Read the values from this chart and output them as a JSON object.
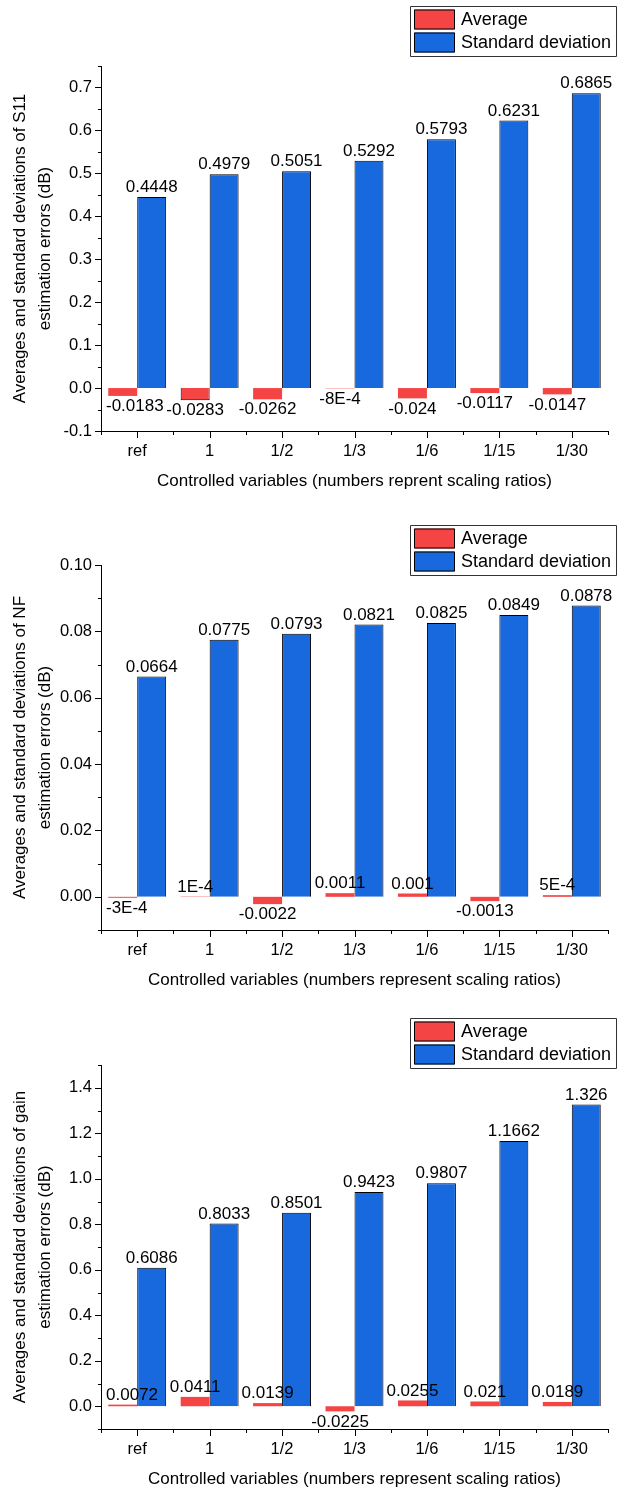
{
  "chart_data": [
    {
      "type": "bar",
      "categories": [
        "ref",
        "1",
        "1/2",
        "1/3",
        "1/6",
        "1/15",
        "1/30"
      ],
      "series": [
        {
          "name": "Average",
          "color": "#f54444",
          "values": [
            -0.0183,
            -0.0283,
            -0.0262,
            -0.0008,
            -0.024,
            -0.0117,
            -0.0147
          ],
          "value_labels": [
            "-0.0183",
            "-0.0283",
            "-0.0262",
            "-8E-4",
            "-0.024",
            "-0.0117",
            "-0.0147"
          ]
        },
        {
          "name": "Standard deviation",
          "color": "#1868de",
          "values": [
            0.4448,
            0.4979,
            0.5051,
            0.5292,
            0.5793,
            0.6231,
            0.6865
          ],
          "value_labels": [
            "0.4448",
            "0.4979",
            "0.5051",
            "0.5292",
            "0.5793",
            "0.6231",
            "0.6865"
          ]
        }
      ],
      "xlabel": "Controlled variables (numbers reprent scaling ratios)",
      "ylabel": "Averages and standard deviations of S11 estimation errors (dB)",
      "ylim": [
        -0.1,
        0.75
      ],
      "yticks": [
        -0.1,
        {
          "value": -0.05,
          "label": null
        },
        {
          "value": 0,
          "label": "0.0"
        },
        {
          "value": 0.05,
          "label": null
        },
        0.1,
        {
          "value": 0.15,
          "label": null
        },
        0.2,
        {
          "value": 0.25,
          "label": null
        },
        0.3,
        {
          "value": 0.35,
          "label": null
        },
        0.4,
        {
          "value": 0.45,
          "label": null
        },
        0.5,
        {
          "value": 0.55,
          "label": null
        },
        0.6,
        {
          "value": 0.65,
          "label": null
        },
        0.7,
        {
          "value": 0.75,
          "label": null
        }
      ],
      "legend": "top right"
    },
    {
      "type": "bar",
      "categories": [
        "ref",
        "1",
        "1/2",
        "1/3",
        "1/6",
        "1/15",
        "1/30"
      ],
      "series": [
        {
          "name": "Average",
          "color": "#f54444",
          "values": [
            -0.0003,
            0.0001,
            -0.0022,
            0.0011,
            0.001,
            -0.0013,
            0.0005
          ],
          "value_labels": [
            "-3E-4",
            "1E-4",
            "-0.0022",
            "0.0011",
            "0.001",
            "-0.0013",
            "5E-4"
          ]
        },
        {
          "name": "Standard deviation",
          "color": "#1868de",
          "values": [
            0.0664,
            0.0775,
            0.0793,
            0.0821,
            0.0825,
            0.0849,
            0.0878
          ],
          "value_labels": [
            "0.0664",
            "0.0775",
            "0.0793",
            "0.0821",
            "0.0825",
            "0.0849",
            "0.0878"
          ]
        }
      ],
      "xlabel": "Controlled variables (numbers represent scaling ratios)",
      "ylabel": "Averages and standard deviations of NF estimation errors (dB)",
      "ylim": [
        -0.01,
        0.1
      ],
      "yticks": [
        {
          "value": -0.01,
          "label": null
        },
        {
          "value": 0,
          "label": "0.00"
        },
        {
          "value": 0.01,
          "label": null
        },
        0.02,
        {
          "value": 0.03,
          "label": null
        },
        0.04,
        {
          "value": 0.05,
          "label": null
        },
        0.06,
        {
          "value": 0.07,
          "label": null
        },
        0.08,
        {
          "value": 0.09,
          "label": null
        },
        {
          "value": 0.1,
          "label": "0.10"
        }
      ],
      "legend": "top right"
    },
    {
      "type": "bar",
      "categories": [
        "ref",
        "1",
        "1/2",
        "1/3",
        "1/6",
        "1/15",
        "1/30"
      ],
      "series": [
        {
          "name": "Average",
          "color": "#f54444",
          "values": [
            0.0072,
            0.0411,
            0.0139,
            -0.0225,
            0.0255,
            0.021,
            0.0189
          ],
          "value_labels": [
            "0.0072",
            "0.0411",
            "0.0139",
            "-0.0225",
            "0.0255",
            "0.021",
            "0.0189"
          ]
        },
        {
          "name": "Standard deviation",
          "color": "#1868de",
          "values": [
            0.6086,
            0.8033,
            0.8501,
            0.9423,
            0.9807,
            1.1662,
            1.326
          ],
          "value_labels": [
            "0.6086",
            "0.8033",
            "0.8501",
            "0.9423",
            "0.9807",
            "1.1662",
            "1.326"
          ]
        }
      ],
      "xlabel": "Controlled variables (numbers represent scaling ratios)",
      "ylabel": "Averages and standard deviations of gain estimation errors (dB)",
      "ylim": [
        -0.1,
        1.5
      ],
      "yticks": [
        {
          "value": -0.1,
          "label": null
        },
        {
          "value": 0,
          "label": "0.0"
        },
        {
          "value": 0.1,
          "label": null
        },
        0.2,
        {
          "value": 0.3,
          "label": null
        },
        0.4,
        {
          "value": 0.5,
          "label": null
        },
        0.6,
        {
          "value": 0.7,
          "label": null
        },
        0.8,
        {
          "value": 0.9,
          "label": null
        },
        {
          "value": 1,
          "label": "1.0"
        },
        {
          "value": 1.1,
          "label": null
        },
        1.2,
        {
          "value": 1.3,
          "label": null
        },
        1.4,
        {
          "value": 1.5,
          "label": null
        }
      ],
      "legend": "top right"
    }
  ]
}
